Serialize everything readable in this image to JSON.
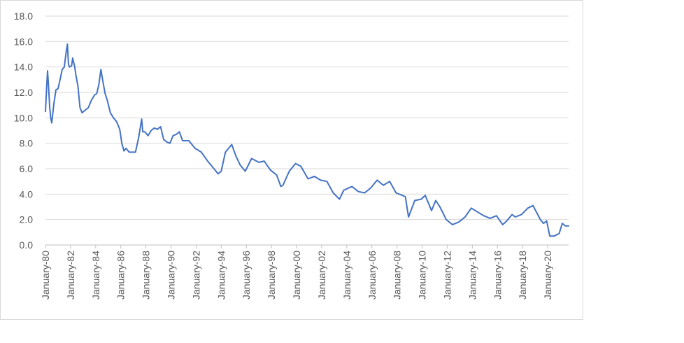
{
  "chart_data": {
    "type": "line",
    "title": "",
    "xlabel": "",
    "ylabel": "",
    "ylim": [
      0,
      18
    ],
    "y_ticks": [
      "0.0",
      "2.0",
      "4.0",
      "6.0",
      "8.0",
      "10.0",
      "12.0",
      "14.0",
      "16.0",
      "18.0"
    ],
    "x_range": [
      "1980-01",
      "2021-09"
    ],
    "x_tick_labels": [
      "January-80",
      "January-82",
      "January-84",
      "January-86",
      "January-88",
      "January-90",
      "January-92",
      "January-94",
      "January-96",
      "January-98",
      "January-00",
      "January-02",
      "January-04",
      "January-06",
      "January-08",
      "January-10",
      "January-12",
      "January-14",
      "January-16",
      "January-18",
      "January-20"
    ],
    "grid": true,
    "legend": "none",
    "series": [
      {
        "color": "#4472c4",
        "x": [
          "1980-01",
          "1980-02",
          "1980-03",
          "1980-04",
          "1980-05",
          "1980-06",
          "1980-07",
          "1980-09",
          "1980-11",
          "1981-01",
          "1981-03",
          "1981-05",
          "1981-07",
          "1981-09",
          "1981-10",
          "1981-11",
          "1981-12",
          "1982-02",
          "1982-03",
          "1982-05",
          "1982-06",
          "1982-08",
          "1982-10",
          "1982-12",
          "1983-03",
          "1983-06",
          "1983-09",
          "1983-12",
          "1984-02",
          "1984-04",
          "1984-06",
          "1984-08",
          "1984-10",
          "1984-12",
          "1985-03",
          "1985-06",
          "1985-09",
          "1985-12",
          "1986-02",
          "1986-04",
          "1986-06",
          "1986-09",
          "1986-12",
          "1987-03",
          "1987-06",
          "1987-09",
          "1987-10",
          "1987-12",
          "1988-03",
          "1988-06",
          "1988-09",
          "1988-12",
          "1989-03",
          "1989-06",
          "1989-09",
          "1989-12",
          "1990-03",
          "1990-06",
          "1990-09",
          "1990-12",
          "1991-06",
          "1991-12",
          "1992-06",
          "1992-12",
          "1993-06",
          "1993-10",
          "1994-01",
          "1994-05",
          "1994-11",
          "1995-03",
          "1995-07",
          "1995-12",
          "1996-06",
          "1997-01",
          "1997-06",
          "1997-12",
          "1998-06",
          "1998-10",
          "1998-12",
          "1999-06",
          "1999-12",
          "2000-05",
          "2000-12",
          "2001-06",
          "2001-12",
          "2002-06",
          "2002-12",
          "2003-06",
          "2003-10",
          "2004-03",
          "2004-06",
          "2004-12",
          "2005-06",
          "2005-12",
          "2006-06",
          "2006-12",
          "2007-06",
          "2007-12",
          "2008-06",
          "2008-09",
          "2008-12",
          "2009-06",
          "2009-12",
          "2010-04",
          "2010-10",
          "2011-02",
          "2011-06",
          "2011-12",
          "2012-06",
          "2012-12",
          "2013-06",
          "2013-12",
          "2014-06",
          "2014-12",
          "2015-06",
          "2015-12",
          "2016-06",
          "2016-10",
          "2017-03",
          "2017-06",
          "2017-12",
          "2018-06",
          "2018-11",
          "2019-06",
          "2019-09",
          "2019-12",
          "2020-03",
          "2020-07",
          "2020-12",
          "2021-03",
          "2021-06",
          "2021-09"
        ],
        "values": [
          10.5,
          12.2,
          13.7,
          12.4,
          10.9,
          10.0,
          9.6,
          11.1,
          12.2,
          12.3,
          13.0,
          13.8,
          14.0,
          15.3,
          15.8,
          14.2,
          14.0,
          14.1,
          14.7,
          14.0,
          13.4,
          12.5,
          10.8,
          10.4,
          10.6,
          10.8,
          11.4,
          11.8,
          11.9,
          12.6,
          13.8,
          12.8,
          11.9,
          11.4,
          10.4,
          10.0,
          9.7,
          9.1,
          8.0,
          7.4,
          7.6,
          7.3,
          7.3,
          7.3,
          8.4,
          9.9,
          8.9,
          8.9,
          8.6,
          9.0,
          9.2,
          9.1,
          9.3,
          8.3,
          8.1,
          8.0,
          8.6,
          8.7,
          8.9,
          8.2,
          8.2,
          7.6,
          7.3,
          6.6,
          6.0,
          5.6,
          5.8,
          7.3,
          7.9,
          7.0,
          6.3,
          5.8,
          6.8,
          6.5,
          6.6,
          5.9,
          5.5,
          4.6,
          4.7,
          5.8,
          6.4,
          6.2,
          5.2,
          5.4,
          5.1,
          5.0,
          4.1,
          3.6,
          4.3,
          4.5,
          4.6,
          4.2,
          4.1,
          4.5,
          5.1,
          4.7,
          5.0,
          4.1,
          3.9,
          3.8,
          2.2,
          3.5,
          3.6,
          3.9,
          2.7,
          3.5,
          3.0,
          2.0,
          1.6,
          1.8,
          2.2,
          2.9,
          2.6,
          2.3,
          2.1,
          2.3,
          1.6,
          1.9,
          2.4,
          2.2,
          2.4,
          2.9,
          3.1,
          2.0,
          1.7,
          1.9,
          0.7,
          0.7,
          0.9,
          1.7,
          1.5,
          1.5
        ]
      }
    ]
  }
}
